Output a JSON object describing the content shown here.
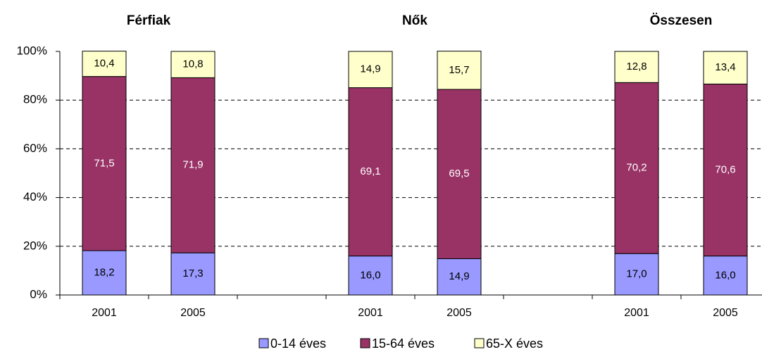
{
  "chart_data": {
    "type": "stacked_bar",
    "group_labels": [
      "Férfiak",
      "Nők",
      "Összesen"
    ],
    "categories": [
      "2001",
      "2005",
      null,
      "2001",
      "2005",
      null,
      "2001",
      "2005"
    ],
    "series": [
      {
        "name": "0-14 éves",
        "color": "#9999ff",
        "label_color": "#000000",
        "values": [
          18.2,
          17.3,
          null,
          16.0,
          14.9,
          null,
          17.0,
          16.0
        ],
        "value_labels": [
          "18,2",
          "17,3",
          null,
          "16,0",
          "14,9",
          null,
          "17,0",
          "16,0"
        ]
      },
      {
        "name": "15-64 éves",
        "color": "#993366",
        "label_color": "#ffffff",
        "values": [
          71.5,
          71.9,
          null,
          69.1,
          69.5,
          null,
          70.2,
          70.6
        ],
        "value_labels": [
          "71,5",
          "71,9",
          null,
          "69,1",
          "69,5",
          null,
          "70,2",
          "70,6"
        ]
      },
      {
        "name": "65-X éves",
        "color": "#ffffcc",
        "label_color": "#000000",
        "values": [
          10.4,
          10.8,
          null,
          14.9,
          15.7,
          null,
          12.8,
          13.4
        ],
        "value_labels": [
          "10,4",
          "10,8",
          null,
          "14,9",
          "15,7",
          null,
          "12,8",
          "13,4"
        ]
      }
    ],
    "ylim": [
      0,
      100
    ],
    "yticks": [
      {
        "value": 0,
        "label": "0%"
      },
      {
        "value": 20,
        "label": "20%"
      },
      {
        "value": 40,
        "label": "40%"
      },
      {
        "value": 60,
        "label": "60%"
      },
      {
        "value": 80,
        "label": "80%"
      },
      {
        "value": 100,
        "label": "100%"
      }
    ],
    "grid": true,
    "legend": "bottom"
  }
}
